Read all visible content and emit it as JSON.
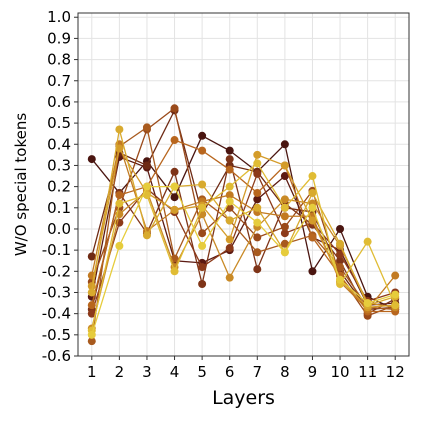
{
  "chart_data": {
    "type": "line",
    "title": "",
    "xlabel": "Layers",
    "ylabel": "W/O special tokens",
    "x": [
      1,
      2,
      3,
      4,
      5,
      6,
      7,
      8,
      9,
      10,
      11,
      12
    ],
    "x_ticks": [
      "1",
      "2",
      "3",
      "4",
      "5",
      "6",
      "7",
      "8",
      "9",
      "10",
      "11",
      "12"
    ],
    "xlim": [
      0.5,
      12.5
    ],
    "ylim": [
      -0.6,
      1.02
    ],
    "y_ticks": [
      "1.0",
      "0.9",
      "0.8",
      "0.7",
      "0.6",
      "0.5",
      "0.4",
      "0.3",
      "0.2",
      "0.1",
      "0.0",
      "-0.1",
      "-0.2",
      "-0.3",
      "-0.4",
      "-0.5",
      "-0.6"
    ],
    "grid": true,
    "legend": "none",
    "series": [
      {
        "color": "#4a1510",
        "values": [
          0.33,
          0.17,
          0.32,
          0.15,
          0.44,
          0.37,
          0.27,
          0.4,
          -0.2,
          0.0,
          -0.32,
          -0.38
        ]
      },
      {
        "color": "#5c1a12",
        "values": [
          -0.32,
          0.34,
          0.29,
          -0.15,
          -0.16,
          -0.1,
          0.14,
          0.25,
          -0.04,
          -0.1,
          -0.36,
          -0.35
        ]
      },
      {
        "color": "#6e2a14",
        "values": [
          -0.13,
          0.36,
          0.3,
          0.56,
          0.07,
          0.3,
          0.27,
          0.1,
          0.08,
          -0.2,
          -0.38,
          -0.37
        ]
      },
      {
        "color": "#7e3418",
        "values": [
          -0.38,
          0.17,
          -0.02,
          0.27,
          -0.26,
          0.33,
          -0.19,
          0.12,
          0.02,
          -0.15,
          -0.4,
          -0.33
        ]
      },
      {
        "color": "#8c3a1a",
        "values": [
          -0.4,
          0.03,
          0.19,
          0.08,
          -0.18,
          -0.09,
          0.26,
          -0.02,
          0.03,
          -0.12,
          -0.34,
          -0.3
        ]
      },
      {
        "color": "#9a4a1a",
        "values": [
          -0.25,
          0.1,
          0.47,
          0.57,
          -0.02,
          0.1,
          -0.04,
          0.01,
          0.18,
          -0.22,
          -0.41,
          -0.36
        ]
      },
      {
        "color": "#a85a1e",
        "values": [
          -0.53,
          0.39,
          0.48,
          -0.14,
          0.14,
          0.04,
          -0.11,
          -0.07,
          -0.03,
          -0.18,
          -0.37,
          -0.38
        ]
      },
      {
        "color": "#b8661e",
        "values": [
          -0.36,
          0.16,
          0.2,
          0.42,
          0.37,
          0.28,
          0.17,
          0.3,
          -0.04,
          -0.22,
          -0.39,
          -0.39
        ]
      },
      {
        "color": "#c27a22",
        "values": [
          -0.22,
          0.4,
          -0.01,
          0.09,
          0.13,
          0.16,
          0.08,
          0.06,
          0.06,
          -0.25,
          -0.38,
          -0.22
        ]
      },
      {
        "color": "#c98a26",
        "values": [
          -0.47,
          0.07,
          0.18,
          -0.18,
          0.07,
          -0.23,
          0.01,
          0.14,
          0.12,
          -0.08,
          -0.35,
          -0.37
        ]
      },
      {
        "color": "#d49c2a",
        "values": [
          -0.27,
          0.38,
          0.17,
          0.09,
          0.11,
          -0.05,
          0.35,
          0.3,
          0.04,
          -0.24,
          -0.37,
          -0.36
        ]
      },
      {
        "color": "#d8aa2e",
        "values": [
          -0.3,
          0.47,
          -0.03,
          0.2,
          0.21,
          0.04,
          0.1,
          -0.11,
          0.17,
          -0.07,
          -0.36,
          -0.32
        ]
      },
      {
        "color": "#e0bc34",
        "values": [
          -0.48,
          0.12,
          0.16,
          -0.2,
          0.1,
          0.2,
          0.31,
          0.1,
          0.25,
          -0.26,
          -0.06,
          -0.36
        ]
      },
      {
        "color": "#e6cc3c",
        "values": [
          -0.5,
          -0.08,
          0.2,
          0.2,
          -0.08,
          0.13,
          0.03,
          -0.11,
          0.1,
          -0.24,
          -0.35,
          -0.31
        ]
      }
    ]
  }
}
